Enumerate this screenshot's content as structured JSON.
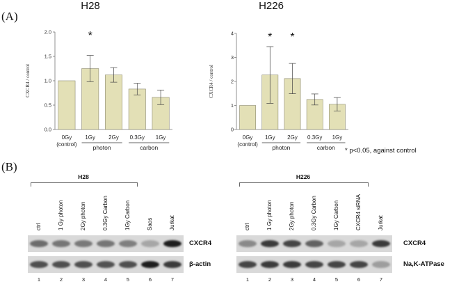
{
  "panel_a": {
    "label": "(A)"
  },
  "panel_b": {
    "label": "(B)"
  },
  "significance_note": "* p<0.05, against control",
  "chart_data": [
    {
      "type": "bar",
      "title": "H28",
      "ylabel": "CXCR4 / control",
      "ylim": [
        0,
        2.0
      ],
      "yticks": [
        "0.0",
        "0.5",
        "1.0",
        "1.5",
        "2.0"
      ],
      "ytick_values": [
        0,
        0.5,
        1.0,
        1.5,
        2.0
      ],
      "categories": [
        "0Gy\n(control)",
        "1Gy",
        "2Gy",
        "0.3Gy",
        "1Gy"
      ],
      "values": [
        1.0,
        1.25,
        1.12,
        0.83,
        0.66
      ],
      "error": [
        0.0,
        0.27,
        0.15,
        0.12,
        0.15
      ],
      "significant": [
        false,
        true,
        false,
        false,
        false
      ],
      "groups": [
        {
          "name": "photon",
          "members": [
            1,
            2
          ]
        },
        {
          "name": "carbon",
          "members": [
            3,
            4
          ]
        }
      ],
      "bar_color": "#e3e0b6",
      "bar_edge": "#8c8a70"
    },
    {
      "type": "bar",
      "title": "H226",
      "ylabel": "CXCR4 / control",
      "ylim": [
        0,
        4
      ],
      "yticks": [
        "0",
        "1",
        "2",
        "3",
        "4"
      ],
      "ytick_values": [
        0,
        1,
        2,
        3,
        4
      ],
      "categories": [
        "0Gy\n(control)",
        "1Gy",
        "2Gy",
        "0.3Gy",
        "1Gy"
      ],
      "values": [
        1.0,
        2.27,
        2.12,
        1.25,
        1.05
      ],
      "error": [
        0.0,
        1.18,
        0.63,
        0.23,
        0.28
      ],
      "significant": [
        false,
        true,
        true,
        false,
        false
      ],
      "groups": [
        {
          "name": "photon",
          "members": [
            1,
            2
          ]
        },
        {
          "name": "carbon",
          "members": [
            3,
            4
          ]
        }
      ],
      "bar_color": "#e3e0b6",
      "bar_edge": "#8c8a70"
    }
  ],
  "blots": [
    {
      "cell_line": "H28",
      "lanes": [
        "ctrl",
        "1 Gy photon",
        "2Gy photon",
        "0.3Gy Carbon",
        "1Gy Carbon",
        "Saos",
        "Jurkat"
      ],
      "lane_numbers": [
        "1",
        "2",
        "3",
        "4",
        "5",
        "6",
        "7"
      ],
      "bracket_lanes": 5,
      "rows": [
        {
          "protein": "CXCR4",
          "intensity": [
            0.55,
            0.5,
            0.48,
            0.5,
            0.45,
            0.25,
            0.95
          ]
        },
        {
          "protein": "β-actin",
          "intensity": [
            0.7,
            0.7,
            0.7,
            0.68,
            0.7,
            0.95,
            0.8
          ]
        }
      ]
    },
    {
      "cell_line": "H226",
      "lanes": [
        "ctrl",
        "1 Gy photon",
        "2Gy photon",
        "0.3Gy Carbon",
        "1Gy Carbon",
        "CXCR4 siRNA",
        "Jurkat"
      ],
      "lane_numbers": [
        "1",
        "2",
        "3",
        "4",
        "5",
        "6",
        "7"
      ],
      "bracket_lanes": 6,
      "rows": [
        {
          "protein": "CXCR4",
          "intensity": [
            0.4,
            0.8,
            0.75,
            0.6,
            0.25,
            0.25,
            0.8
          ]
        },
        {
          "protein": "Na,K-ATPase",
          "intensity": [
            0.75,
            0.8,
            0.8,
            0.75,
            0.75,
            0.75,
            0.3
          ]
        }
      ]
    }
  ]
}
